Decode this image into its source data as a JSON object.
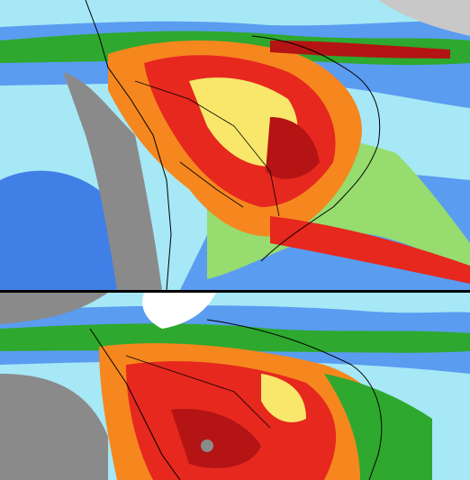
{
  "colors": {
    "ocean": "#a6e8f6",
    "deep_blue": "#1e5adc",
    "light_blue": "#5a9cf0",
    "green": "#2ea82e",
    "light_green": "#96dc6e",
    "yellow": "#f8e76a",
    "orange": "#f5871e",
    "red": "#e6281e",
    "dark_red": "#b41414",
    "gray": "#8a8a8a",
    "light_gray": "#c8c8c8",
    "white": "#ffffff",
    "border": "#000000"
  }
}
